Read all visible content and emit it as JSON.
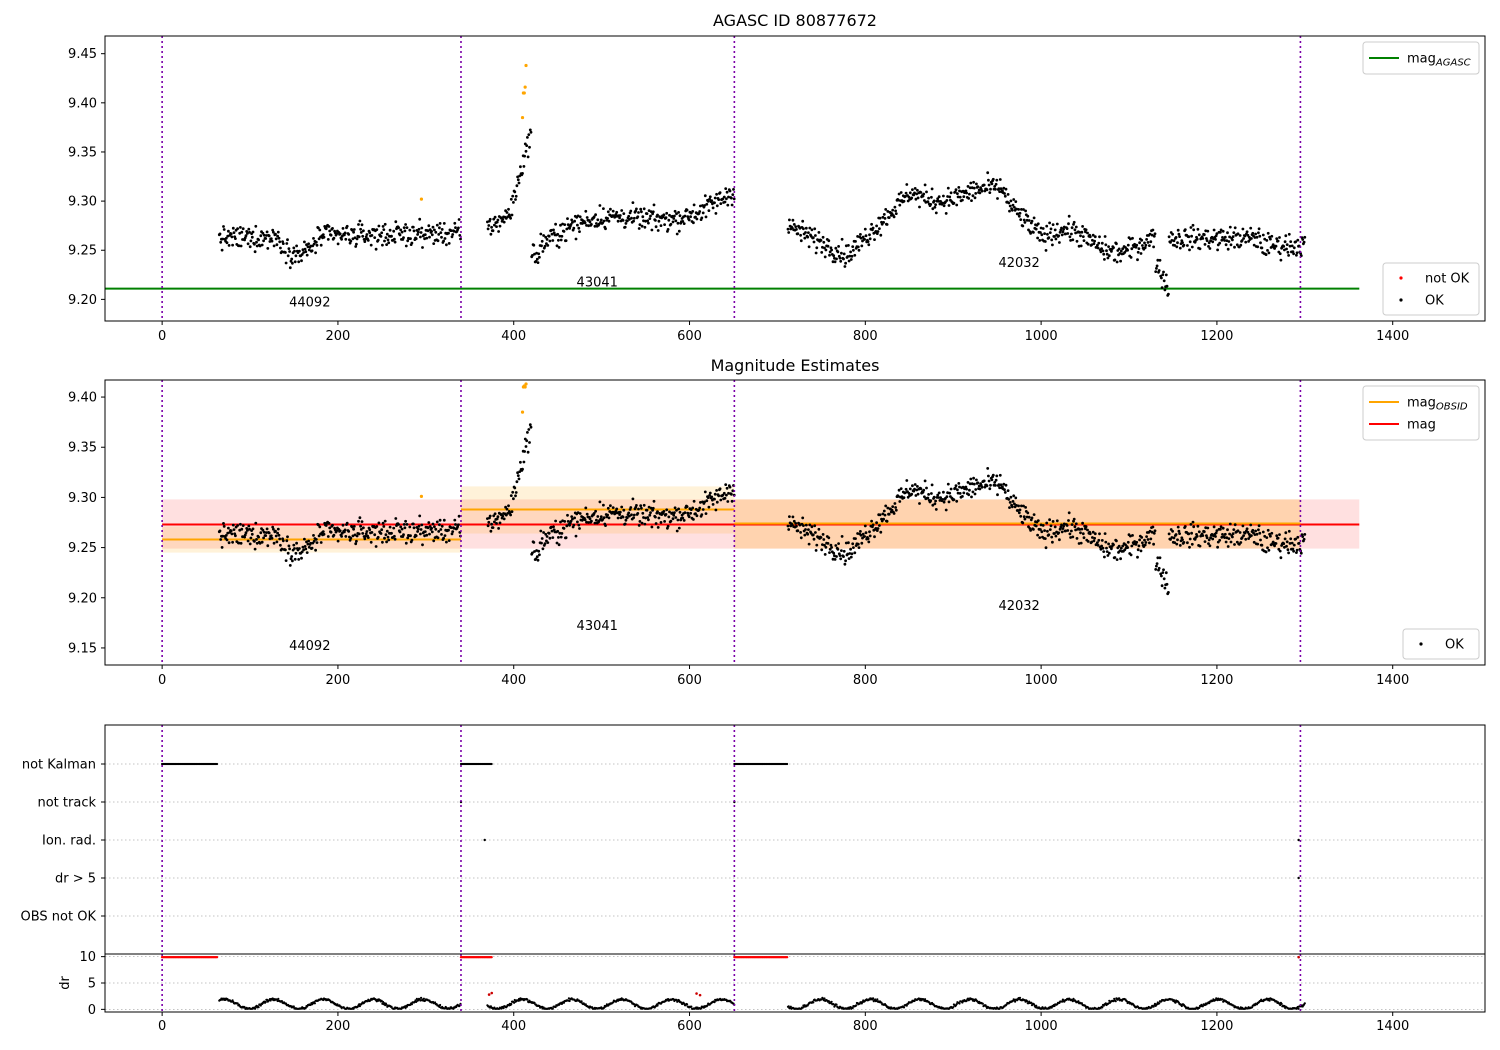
{
  "chart_data": [
    {
      "id": "p1",
      "type": "scatter",
      "title": "AGASC ID 80877672",
      "xlim": [
        -65,
        1505
      ],
      "ylim": [
        9.178,
        9.468
      ],
      "xticks": [
        0,
        200,
        400,
        600,
        800,
        1000,
        1200,
        1400
      ],
      "xtick_labels": [
        "0",
        "200",
        "400",
        "600",
        "800",
        "1000",
        "1200",
        "1400"
      ],
      "yticks": [
        9.2,
        9.25,
        9.3,
        9.35,
        9.4,
        9.45
      ],
      "ytick_labels": [
        "9.20",
        "9.25",
        "9.30",
        "9.35",
        "9.40",
        "9.45"
      ],
      "obs_boundaries": [
        0,
        340,
        651,
        1295
      ],
      "obsids": [
        {
          "label": "44092",
          "x": 168,
          "y": 9.193
        },
        {
          "label": "43041",
          "x": 495,
          "y": 9.213
        },
        {
          "label": "42032",
          "x": 975,
          "y": 9.233
        }
      ],
      "hlines": [
        {
          "name": "mag_AGASC",
          "y": 9.211,
          "x0": -65,
          "x1": 1362,
          "color": "#008000"
        }
      ],
      "orange_points": [
        [
          295,
          9.302
        ],
        [
          410,
          9.385
        ],
        [
          411,
          9.41
        ],
        [
          412,
          9.41
        ],
        [
          413,
          9.416
        ],
        [
          414,
          9.438
        ]
      ],
      "legend_top": [
        {
          "label": "mag",
          "sub": "AGASC",
          "color": "#008000"
        }
      ],
      "legend_bottom": [
        {
          "label": "not OK",
          "color": "#ff0000"
        },
        {
          "label": "OK",
          "color": "#000000"
        }
      ]
    },
    {
      "id": "p2",
      "type": "scatter",
      "title": "Magnitude Estimates",
      "xlim": [
        -65,
        1505
      ],
      "ylim": [
        9.133,
        9.417
      ],
      "xticks": [
        0,
        200,
        400,
        600,
        800,
        1000,
        1200,
        1400
      ],
      "xtick_labels": [
        "0",
        "200",
        "400",
        "600",
        "800",
        "1000",
        "1200",
        "1400"
      ],
      "yticks": [
        9.15,
        9.2,
        9.25,
        9.3,
        9.35,
        9.4
      ],
      "ytick_labels": [
        "9.15",
        "9.20",
        "9.25",
        "9.30",
        "9.35",
        "9.40"
      ],
      "obs_boundaries": [
        0,
        340,
        651,
        1295
      ],
      "obsids": [
        {
          "label": "44092",
          "x": 168,
          "y": 9.148
        },
        {
          "label": "43041",
          "x": 495,
          "y": 9.168
        },
        {
          "label": "42032",
          "x": 975,
          "y": 9.188
        }
      ],
      "bands": [
        {
          "x0": 0,
          "x1": 1362,
          "y0": 9.249,
          "y1": 9.298,
          "color": "#ff0000",
          "opacity": 0.12
        },
        {
          "x0": 0,
          "x1": 340,
          "y0": 9.245,
          "y1": 9.271,
          "color": "#ffa500",
          "opacity": 0.15
        },
        {
          "x0": 340,
          "x1": 651,
          "y0": 9.264,
          "y1": 9.311,
          "color": "#ffa500",
          "opacity": 0.15
        },
        {
          "x0": 651,
          "x1": 1295,
          "y0": 9.249,
          "y1": 9.298,
          "color": "#ffa500",
          "opacity": 0.22
        }
      ],
      "hlines": [
        {
          "name": "mag",
          "y": 9.273,
          "x0": 0,
          "x1": 1362,
          "color": "#ff0000"
        },
        {
          "name": "mag_OBSID_1",
          "y": 9.258,
          "x0": 0,
          "x1": 340,
          "color": "#ffa500"
        },
        {
          "name": "mag_OBSID_2",
          "y": 9.288,
          "x0": 340,
          "x1": 651,
          "color": "#ffa500"
        },
        {
          "name": "mag_OBSID_3",
          "y": 9.274,
          "x0": 651,
          "x1": 1295,
          "color": "#ffa500"
        }
      ],
      "orange_points": [
        [
          295,
          9.301
        ],
        [
          410,
          9.385
        ],
        [
          411,
          9.41
        ],
        [
          412,
          9.411
        ],
        [
          413,
          9.41
        ],
        [
          414,
          9.413
        ]
      ],
      "legend_top": [
        {
          "label": "mag",
          "sub": "OBSID",
          "color": "#ffa500"
        },
        {
          "label": "mag",
          "sub": "",
          "color": "#ff0000"
        }
      ],
      "legend_bottom": [
        {
          "label": "OK",
          "color": "#000000"
        }
      ]
    },
    {
      "id": "p3",
      "type": "scatter",
      "xlim": [
        -65,
        1505
      ],
      "flag_labels": [
        "not Kalman",
        "not track",
        "Ion. rad.",
        "dr > 5",
        "OBS not OK"
      ],
      "obs_boundaries": [
        0,
        340,
        651,
        1295
      ],
      "flag_segments": [
        {
          "row": 0,
          "x0": 0,
          "x1": 63
        },
        {
          "row": 0,
          "x0": 340,
          "x1": 375
        },
        {
          "row": 0,
          "x0": 651,
          "x1": 712
        }
      ],
      "flag_points": [
        [
          1,
          340
        ],
        [
          1,
          651
        ],
        [
          2,
          367
        ],
        [
          2,
          1293
        ],
        [
          3,
          1293
        ]
      ]
    },
    {
      "id": "p4",
      "type": "scatter",
      "ylabel": "dr",
      "xlim": [
        -65,
        1505
      ],
      "ylim": [
        -0.5,
        10.5
      ],
      "xticks": [
        0,
        200,
        400,
        600,
        800,
        1000,
        1200,
        1400
      ],
      "xtick_labels": [
        "0",
        "200",
        "400",
        "600",
        "800",
        "1000",
        "1200",
        "1400"
      ],
      "yticks": [
        0,
        5,
        10
      ],
      "ytick_labels": [
        "0",
        "5",
        "10"
      ],
      "obs_boundaries": [
        0,
        340,
        651,
        1295
      ],
      "red_segments": [
        {
          "x0": 0,
          "x1": 63,
          "y": 9.9
        },
        {
          "x0": 340,
          "x1": 375,
          "y": 9.9
        },
        {
          "x0": 651,
          "x1": 712,
          "y": 9.9
        }
      ],
      "red_points": [
        [
          1293,
          9.9
        ],
        [
          372,
          2.8
        ],
        [
          375,
          3.1
        ],
        [
          608,
          3.0
        ],
        [
          612,
          2.7
        ]
      ]
    }
  ]
}
